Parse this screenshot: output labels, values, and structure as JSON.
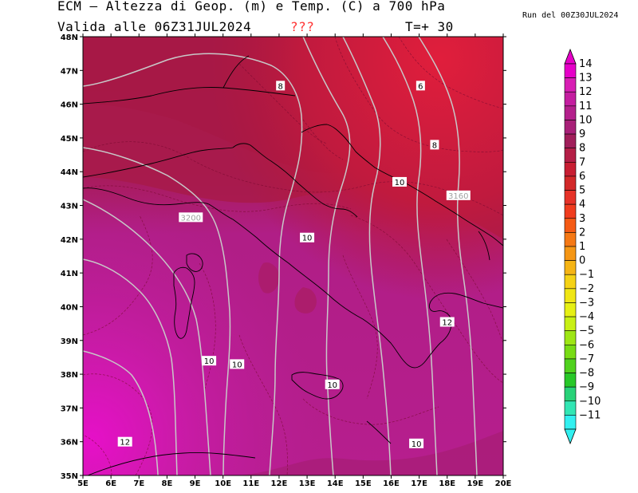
{
  "header": {
    "title_line1": "ECM – Altezza di Geop. (m) e Temp. (C) a 700 hPa",
    "valid_label": "Valida alle 06Z31JUL2024",
    "unknown_marker": "???",
    "lead_time": "T=+ 30",
    "run_label": "Run del 00Z30JUL2024"
  },
  "colors": {
    "title_red": "#ff3333",
    "contour_gray": "#c8c8c8",
    "coast": "#000000"
  },
  "map": {
    "lat_labels": [
      "48N",
      "47N",
      "46N",
      "45N",
      "44N",
      "43N",
      "42N",
      "41N",
      "40N",
      "39N",
      "38N",
      "37N",
      "36N",
      "35N"
    ],
    "lon_labels": [
      "5E",
      "6E",
      "7E",
      "8E",
      "9E",
      "10E",
      "11E",
      "12E",
      "13E",
      "14E",
      "15E",
      "16E",
      "17E",
      "18E",
      "19E",
      "20E"
    ],
    "temp_labels": [
      {
        "text": "8",
        "lon": 12.05,
        "lat": 46.55
      },
      {
        "text": "6",
        "lon": 17.05,
        "lat": 46.55
      },
      {
        "text": "8",
        "lon": 17.55,
        "lat": 44.8
      },
      {
        "text": "10",
        "lon": 16.3,
        "lat": 43.7
      },
      {
        "text": "10",
        "lon": 13.0,
        "lat": 42.05
      },
      {
        "text": "12",
        "lon": 18.0,
        "lat": 39.55
      },
      {
        "text": "10",
        "lon": 9.5,
        "lat": 38.4
      },
      {
        "text": "10",
        "lon": 10.5,
        "lat": 38.3
      },
      {
        "text": "10",
        "lon": 13.9,
        "lat": 37.7
      },
      {
        "text": "12",
        "lon": 6.5,
        "lat": 36.0
      },
      {
        "text": "10",
        "lon": 16.9,
        "lat": 35.95
      }
    ],
    "geop_labels": [
      {
        "text": "3200",
        "lon": 8.85,
        "lat": 42.65
      },
      {
        "text": "3160",
        "lon": 18.4,
        "lat": 43.3
      }
    ]
  },
  "colorbar": {
    "labels": [
      "14",
      "13",
      "12",
      "11",
      "10",
      "9",
      "8",
      "7",
      "6",
      "5",
      "4",
      "3",
      "2",
      "1",
      "0",
      "−1",
      "−2",
      "−3",
      "−4",
      "−5",
      "−6",
      "−7",
      "−8",
      "−9",
      "−10",
      "−11"
    ],
    "colors": [
      "#e600c8",
      "#d81eb4",
      "#c41ea0",
      "#b4208c",
      "#a82078",
      "#a01e5a",
      "#b41e46",
      "#c81e32",
      "#d22828",
      "#e63228",
      "#f03c1e",
      "#f55a14",
      "#f57814",
      "#f59614",
      "#f5b414",
      "#f5d214",
      "#f0e614",
      "#e6f014",
      "#c8f014",
      "#9ee614",
      "#78dc14",
      "#50d21e",
      "#28c828",
      "#28d278",
      "#32e6b4",
      "#32f0f0"
    ]
  }
}
